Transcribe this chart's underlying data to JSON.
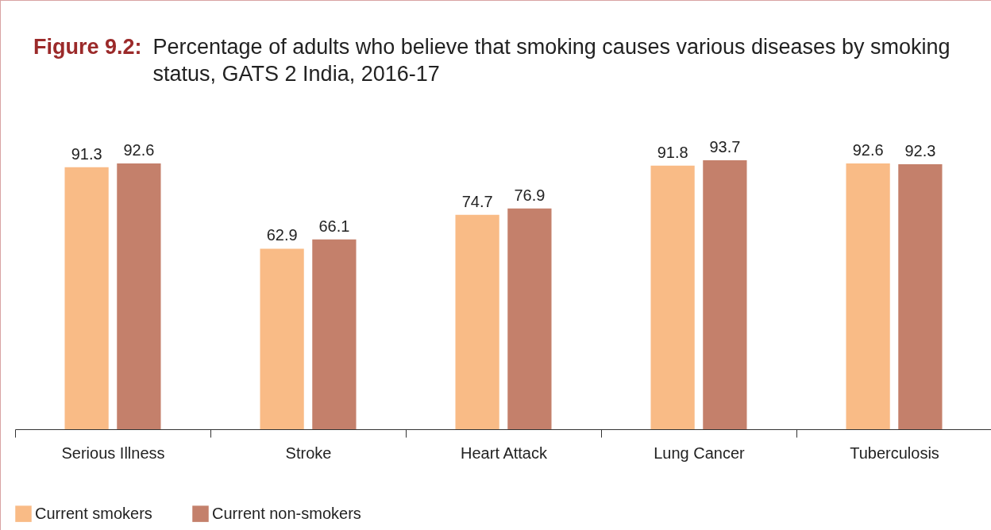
{
  "chart_data": {
    "type": "bar",
    "title": "Figure 9.2:",
    "subtitle": "Percentage of adults who believe that smoking causes various diseases by smoking status, GATS 2 India, 2016-17",
    "categories": [
      "Serious Illness",
      "Stroke",
      "Heart Attack",
      "Lung Cancer",
      "Tuberculosis"
    ],
    "series": [
      {
        "name": "Current smokers",
        "color": "#f9bb86",
        "values": [
          91.3,
          62.9,
          74.7,
          91.8,
          92.6
        ]
      },
      {
        "name": "Current non-smokers",
        "color": "#c4806b",
        "values": [
          92.6,
          66.1,
          76.9,
          93.7,
          92.3
        ]
      }
    ],
    "data_labels": true,
    "legend": "bottom"
  }
}
